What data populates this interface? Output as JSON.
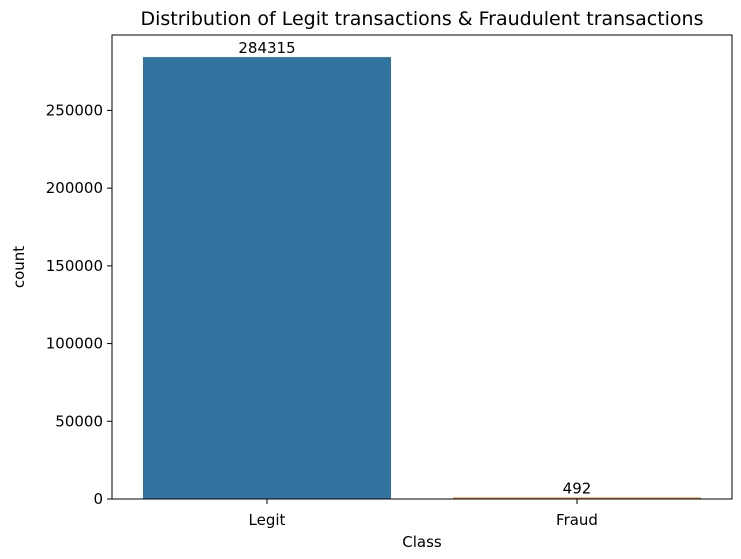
{
  "chart_data": {
    "type": "bar",
    "title": "Distribution of Legit transactions & Fraudulent transactions",
    "xlabel": "Class",
    "ylabel": "count",
    "categories": [
      "Legit",
      "Fraud"
    ],
    "values": [
      284315,
      492
    ],
    "data_labels": [
      "284315",
      "492"
    ],
    "bar_colors": [
      "#3274a1",
      "#e1812c"
    ],
    "ylim": [
      0,
      298530
    ],
    "yticks": [
      0,
      50000,
      100000,
      150000,
      200000,
      250000
    ],
    "ytick_labels": [
      "0",
      "50000",
      "100000",
      "150000",
      "200000",
      "250000"
    ],
    "grid": false,
    "legend": "none"
  }
}
